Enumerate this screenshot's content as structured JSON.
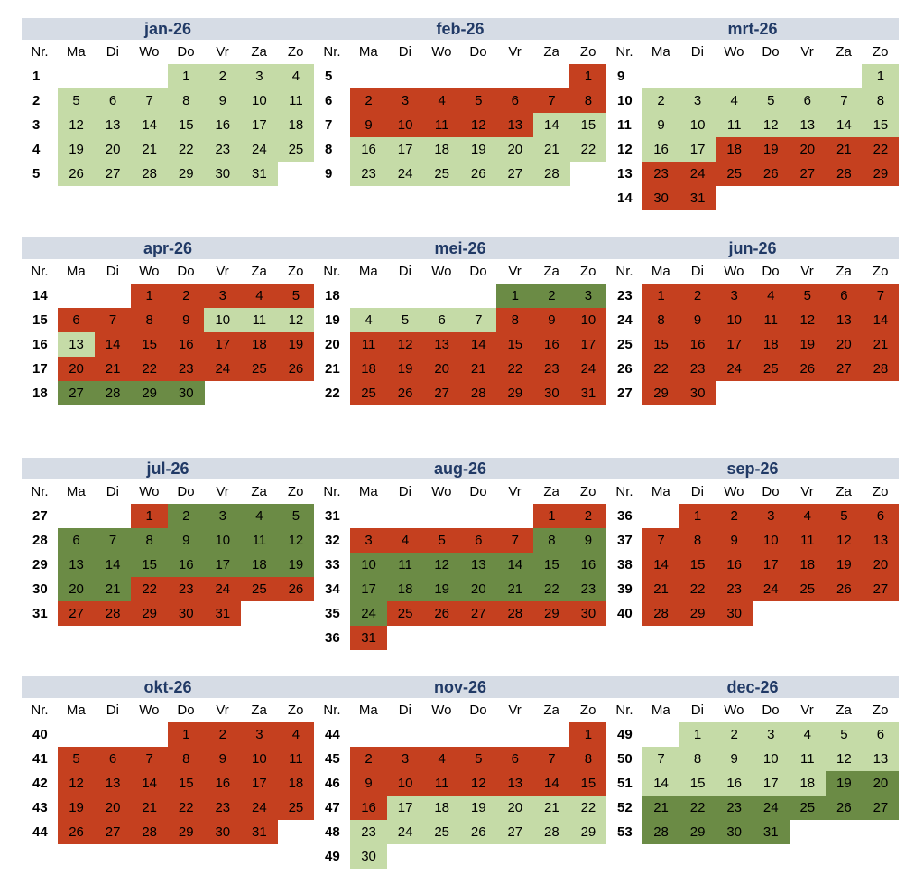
{
  "headers": {
    "nr": "Nr.",
    "days": [
      "Ma",
      "Di",
      "Wo",
      "Do",
      "Vr",
      "Za",
      "Zo"
    ]
  },
  "colors": {
    "light_green": "#c5dba7",
    "red": "#c5401f",
    "dark_green": "#6b8b45",
    "title_bg": "#d6dce5",
    "title_text": "#213a66"
  },
  "months": [
    {
      "name": "jan-26",
      "weeks": [
        {
          "nr": "1",
          "days": [
            "",
            "",
            "",
            "1",
            "2",
            "3",
            "4"
          ],
          "s": "---LLLL"
        },
        {
          "nr": "2",
          "days": [
            "5",
            "6",
            "7",
            "8",
            "9",
            "10",
            "11"
          ],
          "s": "LLLLLLL"
        },
        {
          "nr": "3",
          "days": [
            "12",
            "13",
            "14",
            "15",
            "16",
            "17",
            "18"
          ],
          "s": "LLLLLLL"
        },
        {
          "nr": "4",
          "days": [
            "19",
            "20",
            "21",
            "22",
            "23",
            "24",
            "25"
          ],
          "s": "LLLLLLL"
        },
        {
          "nr": "5",
          "days": [
            "26",
            "27",
            "28",
            "29",
            "30",
            "31",
            ""
          ],
          "s": "LLLLLL-"
        }
      ]
    },
    {
      "name": "feb-26",
      "weeks": [
        {
          "nr": "5",
          "days": [
            "",
            "",
            "",
            "",
            "",
            "",
            "1"
          ],
          "s": "------R"
        },
        {
          "nr": "6",
          "days": [
            "2",
            "3",
            "4",
            "5",
            "6",
            "7",
            "8"
          ],
          "s": "RRRRRRR"
        },
        {
          "nr": "7",
          "days": [
            "9",
            "10",
            "11",
            "12",
            "13",
            "14",
            "15"
          ],
          "s": "RRRRRLL"
        },
        {
          "nr": "8",
          "days": [
            "16",
            "17",
            "18",
            "19",
            "20",
            "21",
            "22"
          ],
          "s": "LLLLLLL"
        },
        {
          "nr": "9",
          "days": [
            "23",
            "24",
            "25",
            "26",
            "27",
            "28",
            ""
          ],
          "s": "LLLLLL-"
        }
      ]
    },
    {
      "name": "mrt-26",
      "weeks": [
        {
          "nr": "9",
          "days": [
            "",
            "",
            "",
            "",
            "",
            "",
            "1"
          ],
          "s": "------L"
        },
        {
          "nr": "10",
          "days": [
            "2",
            "3",
            "4",
            "5",
            "6",
            "7",
            "8"
          ],
          "s": "LLLLLLL"
        },
        {
          "nr": "11",
          "days": [
            "9",
            "10",
            "11",
            "12",
            "13",
            "14",
            "15"
          ],
          "s": "LLLLLLL"
        },
        {
          "nr": "12",
          "days": [
            "16",
            "17",
            "18",
            "19",
            "20",
            "21",
            "22"
          ],
          "s": "LLRRRRR"
        },
        {
          "nr": "13",
          "days": [
            "23",
            "24",
            "25",
            "26",
            "27",
            "28",
            "29"
          ],
          "s": "RRRRRRR"
        },
        {
          "nr": "14",
          "days": [
            "30",
            "31",
            "",
            "",
            "",
            "",
            ""
          ],
          "s": "RR-----"
        }
      ]
    },
    {
      "name": "apr-26",
      "weeks": [
        {
          "nr": "14",
          "days": [
            "",
            "",
            "1",
            "2",
            "3",
            "4",
            "5"
          ],
          "s": "--RRRRR"
        },
        {
          "nr": "15",
          "days": [
            "6",
            "7",
            "8",
            "9",
            "10",
            "11",
            "12"
          ],
          "s": "RRRRLLL"
        },
        {
          "nr": "16",
          "days": [
            "13",
            "14",
            "15",
            "16",
            "17",
            "18",
            "19"
          ],
          "s": "LRRRRRR"
        },
        {
          "nr": "17",
          "days": [
            "20",
            "21",
            "22",
            "23",
            "24",
            "25",
            "26"
          ],
          "s": "RRRRRRR"
        },
        {
          "nr": "18",
          "days": [
            "27",
            "28",
            "29",
            "30",
            "",
            "",
            ""
          ],
          "s": "DDDD---"
        }
      ]
    },
    {
      "name": "mei-26",
      "weeks": [
        {
          "nr": "18",
          "days": [
            "",
            "",
            "",
            "",
            "1",
            "2",
            "3"
          ],
          "s": "----DDD"
        },
        {
          "nr": "19",
          "days": [
            "4",
            "5",
            "6",
            "7",
            "8",
            "9",
            "10"
          ],
          "s": "LLLLRRR"
        },
        {
          "nr": "20",
          "days": [
            "11",
            "12",
            "13",
            "14",
            "15",
            "16",
            "17"
          ],
          "s": "RRRRRRR"
        },
        {
          "nr": "21",
          "days": [
            "18",
            "19",
            "20",
            "21",
            "22",
            "23",
            "24"
          ],
          "s": "RRRRRRR"
        },
        {
          "nr": "22",
          "days": [
            "25",
            "26",
            "27",
            "28",
            "29",
            "30",
            "31"
          ],
          "s": "RRRRRRR"
        }
      ]
    },
    {
      "name": "jun-26",
      "weeks": [
        {
          "nr": "23",
          "days": [
            "1",
            "2",
            "3",
            "4",
            "5",
            "6",
            "7"
          ],
          "s": "RRRRRRR"
        },
        {
          "nr": "24",
          "days": [
            "8",
            "9",
            "10",
            "11",
            "12",
            "13",
            "14"
          ],
          "s": "RRRRRRR"
        },
        {
          "nr": "25",
          "days": [
            "15",
            "16",
            "17",
            "18",
            "19",
            "20",
            "21"
          ],
          "s": "RRRRRRR"
        },
        {
          "nr": "26",
          "days": [
            "22",
            "23",
            "24",
            "25",
            "26",
            "27",
            "28"
          ],
          "s": "RRRRRRR"
        },
        {
          "nr": "27",
          "days": [
            "29",
            "30",
            "",
            "",
            "",
            "",
            ""
          ],
          "s": "RR-----"
        }
      ]
    },
    {
      "name": "jul-26",
      "weeks": [
        {
          "nr": "27",
          "days": [
            "",
            "",
            "1",
            "2",
            "3",
            "4",
            "5"
          ],
          "s": "--RDDDD"
        },
        {
          "nr": "28",
          "days": [
            "6",
            "7",
            "8",
            "9",
            "10",
            "11",
            "12"
          ],
          "s": "DDDDDDD"
        },
        {
          "nr": "29",
          "days": [
            "13",
            "14",
            "15",
            "16",
            "17",
            "18",
            "19"
          ],
          "s": "DDDDDDD"
        },
        {
          "nr": "30",
          "days": [
            "20",
            "21",
            "22",
            "23",
            "24",
            "25",
            "26"
          ],
          "s": "DDRRRRR"
        },
        {
          "nr": "31",
          "days": [
            "27",
            "28",
            "29",
            "30",
            "31",
            "",
            ""
          ],
          "s": "RRRRR--"
        }
      ]
    },
    {
      "name": "aug-26",
      "weeks": [
        {
          "nr": "31",
          "days": [
            "",
            "",
            "",
            "",
            "",
            "1",
            "2"
          ],
          "s": "-----RR"
        },
        {
          "nr": "32",
          "days": [
            "3",
            "4",
            "5",
            "6",
            "7",
            "8",
            "9"
          ],
          "s": "RRRRRDD"
        },
        {
          "nr": "33",
          "days": [
            "10",
            "11",
            "12",
            "13",
            "14",
            "15",
            "16"
          ],
          "s": "DDDDDDD"
        },
        {
          "nr": "34",
          "days": [
            "17",
            "18",
            "19",
            "20",
            "21",
            "22",
            "23"
          ],
          "s": "DDDDDDD"
        },
        {
          "nr": "35",
          "days": [
            "24",
            "25",
            "26",
            "27",
            "28",
            "29",
            "30"
          ],
          "s": "DRRRRRR"
        },
        {
          "nr": "36",
          "days": [
            "31",
            "",
            "",
            "",
            "",
            "",
            ""
          ],
          "s": "R------"
        }
      ]
    },
    {
      "name": "sep-26",
      "weeks": [
        {
          "nr": "36",
          "days": [
            "",
            "1",
            "2",
            "3",
            "4",
            "5",
            "6"
          ],
          "s": "-RRRRRR"
        },
        {
          "nr": "37",
          "days": [
            "7",
            "8",
            "9",
            "10",
            "11",
            "12",
            "13"
          ],
          "s": "RRRRRRR"
        },
        {
          "nr": "38",
          "days": [
            "14",
            "15",
            "16",
            "17",
            "18",
            "19",
            "20"
          ],
          "s": "RRRRRRR"
        },
        {
          "nr": "39",
          "days": [
            "21",
            "22",
            "23",
            "24",
            "25",
            "26",
            "27"
          ],
          "s": "RRRRRRR"
        },
        {
          "nr": "40",
          "days": [
            "28",
            "29",
            "30",
            "",
            "",
            "",
            ""
          ],
          "s": "RRR----"
        }
      ]
    },
    {
      "name": "okt-26",
      "weeks": [
        {
          "nr": "40",
          "days": [
            "",
            "",
            "",
            "1",
            "2",
            "3",
            "4"
          ],
          "s": "---RRRR"
        },
        {
          "nr": "41",
          "days": [
            "5",
            "6",
            "7",
            "8",
            "9",
            "10",
            "11"
          ],
          "s": "RRRRRRR"
        },
        {
          "nr": "42",
          "days": [
            "12",
            "13",
            "14",
            "15",
            "16",
            "17",
            "18"
          ],
          "s": "RRRRRRR"
        },
        {
          "nr": "43",
          "days": [
            "19",
            "20",
            "21",
            "22",
            "23",
            "24",
            "25"
          ],
          "s": "RRRRRRR"
        },
        {
          "nr": "44",
          "days": [
            "26",
            "27",
            "28",
            "29",
            "30",
            "31",
            ""
          ],
          "s": "RRRRRR-"
        }
      ]
    },
    {
      "name": "nov-26",
      "weeks": [
        {
          "nr": "44",
          "days": [
            "",
            "",
            "",
            "",
            "",
            "",
            "1"
          ],
          "s": "------R"
        },
        {
          "nr": "45",
          "days": [
            "2",
            "3",
            "4",
            "5",
            "6",
            "7",
            "8"
          ],
          "s": "RRRRRRR"
        },
        {
          "nr": "46",
          "days": [
            "9",
            "10",
            "11",
            "12",
            "13",
            "14",
            "15"
          ],
          "s": "RRRRRRR"
        },
        {
          "nr": "47",
          "days": [
            "16",
            "17",
            "18",
            "19",
            "20",
            "21",
            "22"
          ],
          "s": "RLLLLLL"
        },
        {
          "nr": "48",
          "days": [
            "23",
            "24",
            "25",
            "26",
            "27",
            "28",
            "29"
          ],
          "s": "LLLLLLL"
        },
        {
          "nr": "49",
          "days": [
            "30",
            "",
            "",
            "",
            "",
            "",
            ""
          ],
          "s": "L------"
        }
      ]
    },
    {
      "name": "dec-26",
      "weeks": [
        {
          "nr": "49",
          "days": [
            "",
            "1",
            "2",
            "3",
            "4",
            "5",
            "6"
          ],
          "s": "-LLLLLL"
        },
        {
          "nr": "50",
          "days": [
            "7",
            "8",
            "9",
            "10",
            "11",
            "12",
            "13"
          ],
          "s": "LLLLLLL"
        },
        {
          "nr": "51",
          "days": [
            "14",
            "15",
            "16",
            "17",
            "18",
            "19",
            "20"
          ],
          "s": "LLLLLDD"
        },
        {
          "nr": "52",
          "days": [
            "21",
            "22",
            "23",
            "24",
            "25",
            "26",
            "27"
          ],
          "s": "DDDDDDD"
        },
        {
          "nr": "53",
          "days": [
            "28",
            "29",
            "30",
            "31",
            "",
            "",
            ""
          ],
          "s": "DDDD---"
        }
      ]
    }
  ]
}
